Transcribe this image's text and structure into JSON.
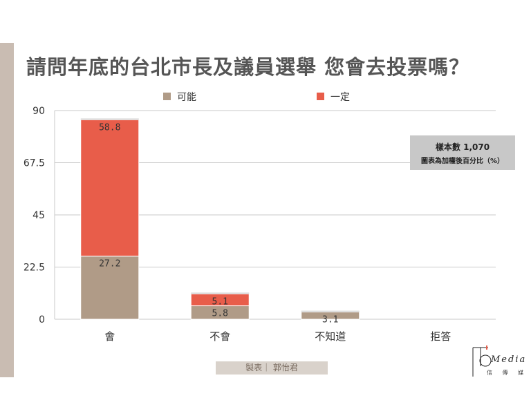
{
  "title": "請問年底的台北市長及議員選舉 您會去投票嗎？",
  "sample_box": {
    "line1": "樣本數 1,070",
    "line2": "圖表為加權後百分比（%）"
  },
  "maker": "製表｜ 郭怡君",
  "logo": {
    "word": "Media",
    "sub": "信 傳 媒"
  },
  "colors": {
    "possible": "#b09b87",
    "definite": "#e85d4a",
    "accent": "#c9bcb2"
  },
  "chart_data": {
    "type": "bar",
    "stacked": true,
    "categories": [
      "會",
      "不會",
      "不知道",
      "拒答"
    ],
    "series": [
      {
        "name": "可能",
        "values": [
          27.2,
          5.8,
          3.1,
          0
        ]
      },
      {
        "name": "一定",
        "values": [
          58.8,
          5.1,
          0,
          0
        ]
      }
    ],
    "data_labels": [
      [
        "27.2",
        "5.8",
        "3.1",
        ""
      ],
      [
        "58.8",
        "5.1",
        "",
        ""
      ]
    ],
    "yticks": [
      "0",
      "22.5",
      "45",
      "67.5",
      "90"
    ],
    "ylim": [
      0,
      90
    ],
    "grid": true,
    "legend": "top"
  }
}
